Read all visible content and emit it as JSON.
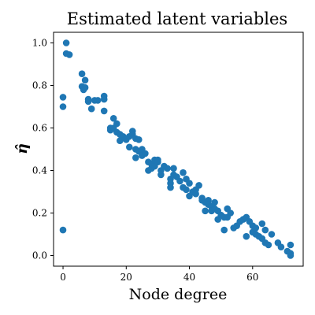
{
  "chart_data": {
    "type": "scatter",
    "title": "Estimated latent variables",
    "xlabel": "Node degree",
    "ylabel": "η̂",
    "xlim": [
      -3,
      76
    ],
    "ylim": [
      -0.05,
      1.05
    ],
    "xticks": [
      0,
      20,
      40,
      60
    ],
    "xtick_labels": [
      "0",
      "20",
      "40",
      "60"
    ],
    "yticks": [
      0.0,
      0.2,
      0.4,
      0.6,
      0.8,
      1.0
    ],
    "ytick_labels": [
      "0.0",
      "0.2",
      "0.4",
      "0.6",
      "0.8",
      "1.0"
    ],
    "grid": false,
    "legend": "none",
    "marker_color": "#1f77b4",
    "series": [
      {
        "points": [
          [
            0,
            0.12
          ],
          [
            0,
            0.7
          ],
          [
            0,
            0.745
          ],
          [
            1,
            1.0
          ],
          [
            1,
            0.95
          ],
          [
            2,
            0.945
          ],
          [
            6,
            0.855
          ],
          [
            6,
            0.795
          ],
          [
            6.5,
            0.78
          ],
          [
            7,
            0.825
          ],
          [
            7,
            0.79
          ],
          [
            8,
            0.735
          ],
          [
            8,
            0.725
          ],
          [
            9,
            0.69
          ],
          [
            10,
            0.73
          ],
          [
            11,
            0.73
          ],
          [
            13,
            0.75
          ],
          [
            13,
            0.735
          ],
          [
            13,
            0.68
          ],
          [
            15,
            0.6
          ],
          [
            15,
            0.59
          ],
          [
            16,
            0.645
          ],
          [
            16,
            0.6
          ],
          [
            17,
            0.58
          ],
          [
            17,
            0.62
          ],
          [
            18,
            0.57
          ],
          [
            18,
            0.54
          ],
          [
            19,
            0.56
          ],
          [
            20,
            0.545
          ],
          [
            20,
            0.55
          ],
          [
            21,
            0.56
          ],
          [
            21,
            0.51
          ],
          [
            22,
            0.585
          ],
          [
            22,
            0.57
          ],
          [
            23,
            0.55
          ],
          [
            23,
            0.5
          ],
          [
            23,
            0.46
          ],
          [
            24,
            0.545
          ],
          [
            24,
            0.49
          ],
          [
            25,
            0.5
          ],
          [
            25,
            0.47
          ],
          [
            26,
            0.48
          ],
          [
            27,
            0.4
          ],
          [
            27,
            0.44
          ],
          [
            28,
            0.41
          ],
          [
            28,
            0.43
          ],
          [
            29,
            0.45
          ],
          [
            29,
            0.42
          ],
          [
            30,
            0.44
          ],
          [
            30,
            0.45
          ],
          [
            31,
            0.4
          ],
          [
            31,
            0.38
          ],
          [
            32,
            0.42
          ],
          [
            33,
            0.41
          ],
          [
            34,
            0.34
          ],
          [
            34,
            0.32
          ],
          [
            34,
            0.36
          ],
          [
            35,
            0.38
          ],
          [
            35,
            0.41
          ],
          [
            36,
            0.37
          ],
          [
            37,
            0.35
          ],
          [
            38,
            0.32
          ],
          [
            38,
            0.39
          ],
          [
            39,
            0.36
          ],
          [
            39,
            0.31
          ],
          [
            40,
            0.34
          ],
          [
            40,
            0.28
          ],
          [
            41,
            0.3
          ],
          [
            42,
            0.31
          ],
          [
            42,
            0.29
          ],
          [
            43,
            0.33
          ],
          [
            44,
            0.27
          ],
          [
            44,
            0.26
          ],
          [
            45,
            0.25
          ],
          [
            45,
            0.21
          ],
          [
            46,
            0.26
          ],
          [
            46,
            0.24
          ],
          [
            47,
            0.23
          ],
          [
            47,
            0.21
          ],
          [
            48,
            0.25
          ],
          [
            48,
            0.22
          ],
          [
            49,
            0.21
          ],
          [
            49,
            0.17
          ],
          [
            50,
            0.19
          ],
          [
            51,
            0.18
          ],
          [
            51,
            0.12
          ],
          [
            52,
            0.22
          ],
          [
            52,
            0.18
          ],
          [
            53,
            0.2
          ],
          [
            54,
            0.13
          ],
          [
            55,
            0.14
          ],
          [
            56,
            0.16
          ],
          [
            57,
            0.17
          ],
          [
            58,
            0.18
          ],
          [
            58,
            0.09
          ],
          [
            59,
            0.16
          ],
          [
            60,
            0.14
          ],
          [
            60,
            0.11
          ],
          [
            61,
            0.13
          ],
          [
            61,
            0.1
          ],
          [
            62,
            0.09
          ],
          [
            63,
            0.15
          ],
          [
            63,
            0.08
          ],
          [
            64,
            0.12
          ],
          [
            64,
            0.06
          ],
          [
            65,
            0.05
          ],
          [
            66,
            0.1
          ],
          [
            68,
            0.06
          ],
          [
            69,
            0.04
          ],
          [
            71,
            0.02
          ],
          [
            72,
            0.05
          ],
          [
            72,
            0.01
          ],
          [
            72,
            0.0
          ]
        ]
      }
    ]
  }
}
